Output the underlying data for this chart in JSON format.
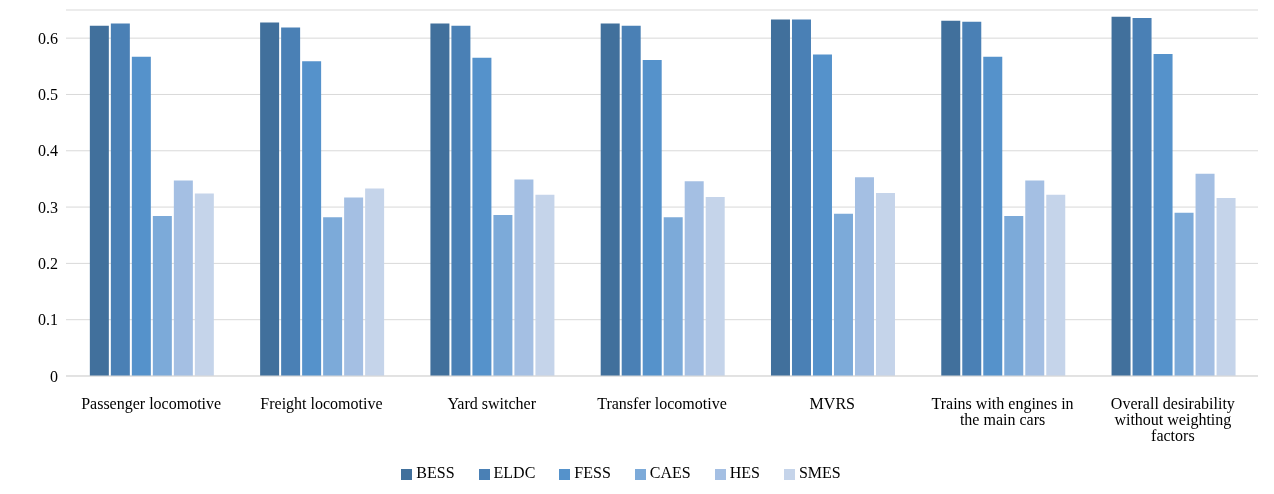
{
  "chart_data": {
    "type": "bar",
    "categories": [
      "Passenger locomotive",
      "Freight locomotive",
      "Yard switcher",
      "Transfer locomotive",
      "MVRS",
      "Trains with engines in the main cars",
      "Overall desirability without weighting factors"
    ],
    "series": [
      {
        "name": "BESS",
        "color": "#41709c",
        "values": [
          0.622,
          0.628,
          0.626,
          0.626,
          0.633,
          0.631,
          0.638
        ]
      },
      {
        "name": "ELDC",
        "color": "#4a80b5",
        "values": [
          0.626,
          0.619,
          0.622,
          0.622,
          0.633,
          0.629,
          0.636
        ]
      },
      {
        "name": "FESS",
        "color": "#5592cb",
        "values": [
          0.567,
          0.559,
          0.565,
          0.561,
          0.571,
          0.567,
          0.572
        ]
      },
      {
        "name": "CAES",
        "color": "#7caad9",
        "values": [
          0.284,
          0.282,
          0.286,
          0.282,
          0.288,
          0.284,
          0.29
        ]
      },
      {
        "name": "HES",
        "color": "#a4bfe3",
        "values": [
          0.347,
          0.317,
          0.349,
          0.346,
          0.353,
          0.347,
          0.359
        ]
      },
      {
        "name": "SMES",
        "color": "#c5d4ea",
        "values": [
          0.324,
          0.333,
          0.322,
          0.318,
          0.325,
          0.322,
          0.316
        ]
      }
    ],
    "ylim": [
      0,
      0.65
    ],
    "yticks": [
      0,
      0.1,
      0.2,
      0.3,
      0.4,
      0.5,
      0.6
    ],
    "grid": "y",
    "legend": "bottom"
  }
}
